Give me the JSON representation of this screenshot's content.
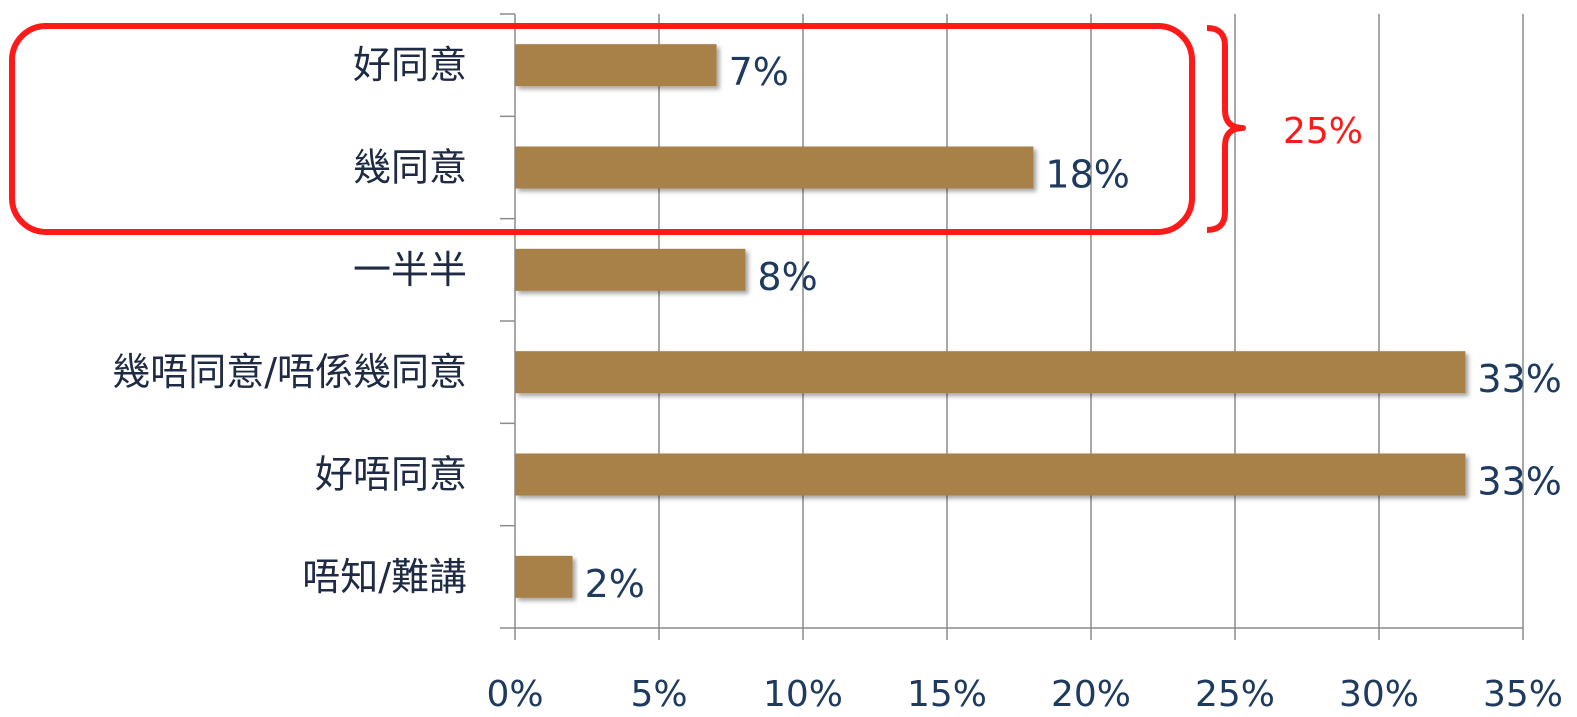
{
  "chart_data": {
    "type": "bar",
    "orientation": "horizontal",
    "categories": [
      "好同意",
      "幾同意",
      "一半半",
      "幾唔同意/唔係幾同意",
      "好唔同意",
      "唔知/難講"
    ],
    "values": [
      7,
      18,
      8,
      33,
      33,
      2
    ],
    "data_labels": [
      "7%",
      "18%",
      "8%",
      "33%",
      "33%",
      "2%"
    ],
    "xlim": [
      0,
      35
    ],
    "x_ticks": [
      0,
      5,
      10,
      15,
      20,
      25,
      30,
      35
    ],
    "x_tick_labels": [
      "0%",
      "5%",
      "10%",
      "15%",
      "20%",
      "25%",
      "30%",
      "35%"
    ],
    "grid": "vertical",
    "bar_color": "#a88149",
    "annotation": {
      "label": "25%",
      "color": "#ff1a1a",
      "highlighted_categories": [
        "好同意",
        "幾同意"
      ]
    }
  }
}
